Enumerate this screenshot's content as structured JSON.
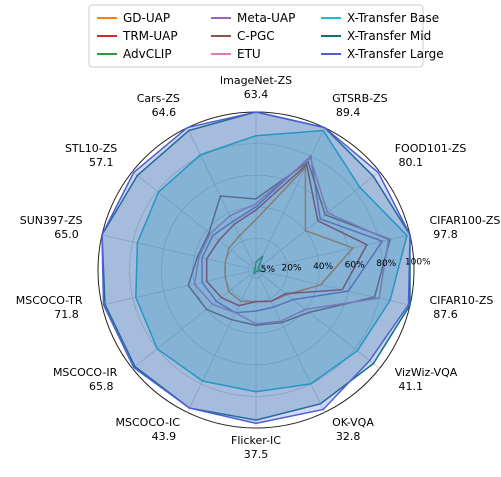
{
  "chart_data": {
    "type": "radar",
    "title": "",
    "radial_ticks": [
      "5%",
      "20%",
      "40%",
      "60%",
      "80%",
      "100%"
    ],
    "axes": [
      {
        "name": "ImageNet-ZS",
        "max_value": "63.4"
      },
      {
        "name": "GTSRB-ZS",
        "max_value": "89.4"
      },
      {
        "name": "FOOD101-ZS",
        "max_value": "80.1"
      },
      {
        "name": "CIFAR100-ZS",
        "max_value": "97.8"
      },
      {
        "name": "CIFAR10-ZS",
        "max_value": "87.6"
      },
      {
        "name": "VizWiz-VQA",
        "max_value": "41.1"
      },
      {
        "name": "OK-VQA",
        "max_value": "32.8"
      },
      {
        "name": "Flicker-IC",
        "max_value": "37.5"
      },
      {
        "name": "MSCOCO-IC",
        "max_value": "43.9"
      },
      {
        "name": "MSCOCO-IR",
        "max_value": "65.8"
      },
      {
        "name": "MSCOCO-TR",
        "max_value": "71.8"
      },
      {
        "name": "SUN397-ZS",
        "max_value": "65.0"
      },
      {
        "name": "STL10-ZS",
        "max_value": "57.1"
      },
      {
        "name": "Cars-ZS",
        "max_value": "64.6"
      }
    ],
    "series": [
      {
        "name": "GD-UAP",
        "color": "#ff7f0e",
        "fill": false,
        "values": [
          32,
          72,
          40,
          63,
          42,
          25,
          22,
          20,
          22,
          22,
          20,
          20,
          22,
          24
        ]
      },
      {
        "name": "TRM-UAP",
        "color": "#d62728",
        "fill": false,
        "values": [
          38,
          74,
          50,
          72,
          56,
          24,
          22,
          20,
          25,
          28,
          32,
          32,
          30,
          32
        ]
      },
      {
        "name": "AdvCLIP",
        "color": "#2ca02c",
        "fill": false,
        "values": [
          5,
          10,
          2,
          2,
          4,
          1,
          1,
          1,
          3,
          1,
          1,
          1,
          1,
          1
        ]
      },
      {
        "name": "Meta-UAP",
        "color": "#9467bd",
        "fill": false,
        "values": [
          40,
          80,
          52,
          82,
          60,
          30,
          26,
          26,
          30,
          32,
          35,
          35,
          35,
          34
        ]
      },
      {
        "name": "C-PGC",
        "color": "#8c564b",
        "fill": false,
        "values": [
          45,
          76,
          56,
          87,
          77,
          43,
          37,
          35,
          35,
          40,
          44,
          38,
          38,
          52
        ]
      },
      {
        "name": "ETU",
        "color": "#e377c2",
        "fill": false,
        "values": [
          42,
          79,
          58,
          86,
          80,
          40,
          36,
          34,
          30,
          35,
          40,
          37,
          37,
          38
        ]
      },
      {
        "name": "X-Transfer Base",
        "color": "#17becf",
        "fill": true,
        "values": [
          85,
          98,
          84,
          98,
          87,
          82,
          80,
          77,
          78,
          80,
          78,
          77,
          79,
          81
        ]
      },
      {
        "name": "X-Transfer Mid",
        "color": "#136f7f",
        "fill": true,
        "values": [
          100,
          100,
          95,
          100,
          100,
          95,
          94,
          95,
          97,
          98,
          98,
          100,
          96,
          98
        ]
      },
      {
        "name": "X-Transfer Large",
        "color": "#4c5fd6",
        "fill": true,
        "values": [
          100,
          100,
          99,
          100,
          99,
          92,
          98,
          97,
          97,
          99,
          99,
          100,
          99,
          100
        ]
      }
    ],
    "legend": {
      "placement": "top-center",
      "columns": 3
    }
  }
}
